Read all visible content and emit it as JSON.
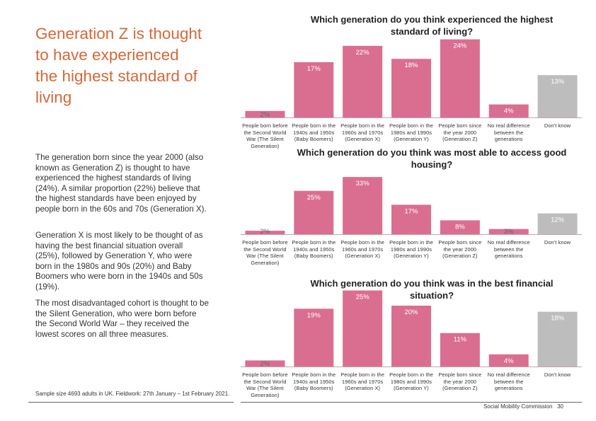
{
  "left": {
    "heading": "Generation Z is thought to have experienced the highest standard of living",
    "paragraphs": [
      "The generation born since the year 2000 (also known as Generation Z) is thought to have experienced the highest standards of living (24%). A similar proportion (22%) believe that the highest standards have been enjoyed by people born in the 60s and 70s (Generation X).",
      "Generation X is most likely to be thought of as having the best financial situation overall (25%), followed by Generation Y, who were born in the 1980s and 90s (20%) and Baby Boomers who were born in the 1940s and 50s (19%).",
      "The most disadvantaged cohort is thought to be the Silent Generation, who were born before the Second World War – they received the lowest scores on all three measures."
    ],
    "sample": "Sample size 4693 adults in UK. Fieldwork: 27th January – 1st February 2021."
  },
  "footer": {
    "org": "Social Mobility Commission",
    "page": "30"
  },
  "colors": {
    "bar": "#DA6E91",
    "dont_know_bar": "#BDBDBD",
    "heading": "#D2693A"
  },
  "chart_data": [
    {
      "type": "bar",
      "title": "Which generation do you think experienced the highest standard of living?",
      "categories": [
        "People born before the Second World War (The Silent Generation)",
        "People born in the 1940s and 1950s (Baby Boomers)",
        "People born in the 1960s and 1970s (Generation X)",
        "People born in the 1980s and 1990s (Generation Y)",
        "People born since the year 2000 (Generation Z)",
        "No real difference between the generations",
        "Don't know"
      ],
      "values": [
        2,
        17,
        22,
        18,
        24,
        4,
        13
      ],
      "labels": [
        "2%",
        "17%",
        "22%",
        "18%",
        "24%",
        "4%",
        "13%"
      ],
      "unit": "%"
    },
    {
      "type": "bar",
      "title": "Which generation do you think was most able to access good housing?",
      "categories": [
        "People born before the Second World War (The Silent Generation)",
        "People born in the 1940s and 1950s (Baby Boomers)",
        "People born in the 1960s and 1970s (Generation X)",
        "People born in the 1980s and 1990s (Generation Y)",
        "People born since the year 2000 (Generation Z)",
        "No real difference between the generations",
        "Don't know"
      ],
      "values": [
        2,
        25,
        33,
        17,
        8,
        3,
        12
      ],
      "labels": [
        "2%",
        "25%",
        "33%",
        "17%",
        "8%",
        "3%",
        "12%"
      ],
      "unit": "%"
    },
    {
      "type": "bar",
      "title": "Which generation do you think was in the best financial situation?",
      "categories": [
        "People born before the Second World War (The Silent Generation)",
        "People born in the 1940s and 1950s (Baby Boomers)",
        "People born in the 1960s and 1970s (Generation X)",
        "People born in the 1980s and 1990s (Generation Y)",
        "People born since the year 2000 (Generation Z)",
        "No real difference between the generations",
        "Don't know"
      ],
      "values": [
        2,
        19,
        25,
        20,
        11,
        4,
        18
      ],
      "labels": [
        "2%",
        "19%",
        "25%",
        "20%",
        "11%",
        "4%",
        "18%"
      ],
      "unit": "%"
    }
  ]
}
